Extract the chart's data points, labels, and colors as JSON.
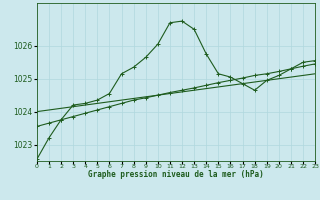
{
  "title": "Graphe pression niveau de la mer (hPa)",
  "bg_color": "#cce8ed",
  "line_color": "#1e5c1e",
  "grid_color": "#b0d8de",
  "series1_x": [
    0,
    1,
    2,
    3,
    4,
    5,
    6,
    7,
    8,
    9,
    10,
    11,
    12,
    13,
    14,
    15,
    16,
    17,
    18,
    19,
    20,
    21,
    22,
    23
  ],
  "series1_y": [
    1022.55,
    1023.2,
    1023.75,
    1024.2,
    1024.25,
    1024.35,
    1024.55,
    1025.15,
    1025.35,
    1025.65,
    1026.05,
    1026.7,
    1026.75,
    1026.5,
    1025.75,
    1025.15,
    1025.05,
    1024.85,
    1024.65,
    1024.95,
    1025.1,
    1025.3,
    1025.5,
    1025.55
  ],
  "series2_x": [
    0,
    1,
    2,
    3,
    4,
    5,
    6,
    7,
    8,
    9,
    10,
    11,
    12,
    13,
    14,
    15,
    16,
    17,
    18,
    19,
    20,
    21,
    22,
    23
  ],
  "series2_y": [
    1023.55,
    1023.65,
    1023.75,
    1023.85,
    1023.95,
    1024.05,
    1024.15,
    1024.25,
    1024.35,
    1024.42,
    1024.5,
    1024.58,
    1024.65,
    1024.72,
    1024.8,
    1024.88,
    1024.95,
    1025.02,
    1025.1,
    1025.15,
    1025.22,
    1025.3,
    1025.38,
    1025.45
  ],
  "series3_x": [
    0,
    1,
    2,
    3,
    4,
    5,
    6,
    7,
    8,
    9,
    10,
    11,
    12,
    13,
    14,
    15,
    16,
    17,
    18,
    19,
    20,
    21,
    22,
    23
  ],
  "series3_y": [
    1024.0,
    1024.05,
    1024.1,
    1024.15,
    1024.2,
    1024.25,
    1024.3,
    1024.35,
    1024.4,
    1024.45,
    1024.5,
    1024.55,
    1024.6,
    1024.65,
    1024.7,
    1024.75,
    1024.8,
    1024.85,
    1024.9,
    1024.95,
    1025.0,
    1025.05,
    1025.1,
    1025.15
  ],
  "xlim": [
    0,
    23
  ],
  "ylim": [
    1022.5,
    1027.3
  ],
  "yticks": [
    1023,
    1024,
    1025,
    1026
  ],
  "xticks": [
    0,
    1,
    2,
    3,
    4,
    5,
    6,
    7,
    8,
    9,
    10,
    11,
    12,
    13,
    14,
    15,
    16,
    17,
    18,
    19,
    20,
    21,
    22,
    23
  ]
}
